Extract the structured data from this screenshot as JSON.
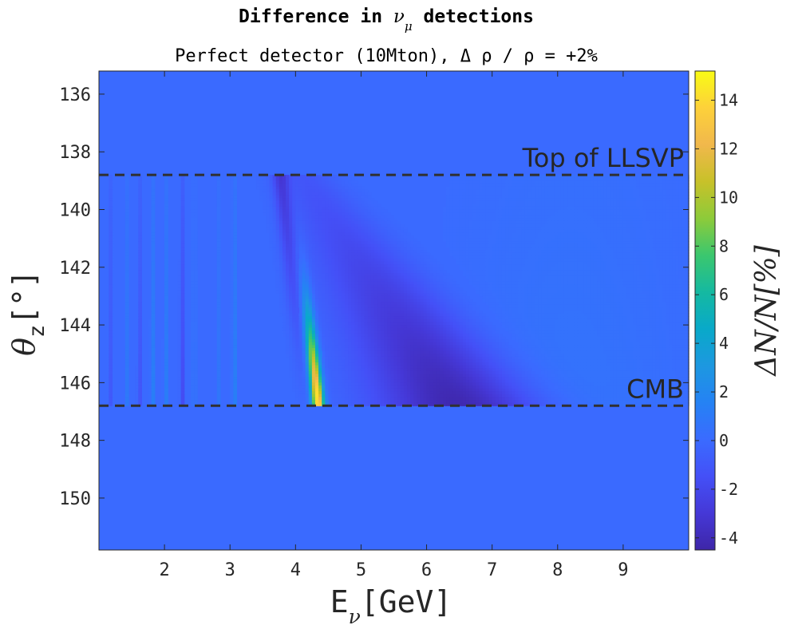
{
  "chart_data": {
    "type": "heatmap",
    "title": "Difference in ν_μ detections",
    "title_parts": {
      "main": "Difference in ",
      "symbol": "ν",
      "sub": "μ",
      "tail": " detections"
    },
    "subtitle": "Perfect detector (10Mton), Δ ρ / ρ = +2%",
    "xlabel": "E_ν[GeV]",
    "xlabel_parts": {
      "main": "E",
      "sub": "ν",
      "tail": "[GeV]"
    },
    "ylabel": "θ_z[°]",
    "ylabel_parts": {
      "main": "θ",
      "sub": "z",
      "tail": "[°]"
    },
    "colorbar_label": "ΔN/N[%]",
    "xlim": [
      1.0,
      10.0
    ],
    "ylim": [
      135.2,
      151.8
    ],
    "y_reversed": true,
    "xticks": [
      2,
      3,
      4,
      5,
      6,
      7,
      8,
      9
    ],
    "xtick_labels": [
      "2",
      "3",
      "4",
      "5",
      "6",
      "7",
      "8",
      "9"
    ],
    "yticks": [
      136,
      138,
      140,
      142,
      144,
      146,
      148,
      150
    ],
    "ytick_labels": [
      "136",
      "138",
      "140",
      "142",
      "144",
      "146",
      "148",
      "150"
    ],
    "clim": [
      -4.5,
      15.2
    ],
    "cticks": [
      -4,
      -2,
      0,
      2,
      4,
      6,
      8,
      10,
      12,
      14
    ],
    "ctick_labels": [
      "-4",
      "-2",
      "0",
      "2",
      "4",
      "6",
      "8",
      "10",
      "12",
      "14"
    ],
    "colormap": "parula",
    "colormap_stops": [
      "#3e26a8",
      "#4538d7",
      "#4450f7",
      "#3a6bff",
      "#2582f4",
      "#1d98e0",
      "#09a9c9",
      "#15b9a1",
      "#3bc76e",
      "#8dcb3a",
      "#c8c129",
      "#f1b84c",
      "#fdd13a",
      "#f9fb15"
    ],
    "background_value": 0.0,
    "anomaly_region": {
      "theta_min": 138.8,
      "theta_max": 146.8,
      "energy_min": 1.0,
      "energy_max": 10.0
    },
    "features": {
      "resonance_ridge": {
        "energy_at_top": 3.95,
        "energy_at_bottom": 4.35,
        "peak_value": 15.0,
        "peak_theta": 146.4
      },
      "depletion_trough": {
        "energy_at_top": 4.1,
        "energy_at_bottom": 6.5,
        "min_value": -4.5,
        "min_theta": 146.5
      },
      "low_energy_streaks": [
        {
          "energy": 1.18,
          "value": -1.0
        },
        {
          "energy": 1.42,
          "value": 1.0
        },
        {
          "energy": 1.62,
          "value": -1.2
        },
        {
          "energy": 1.82,
          "value": 1.4
        },
        {
          "energy": 2.02,
          "value": 1.3
        },
        {
          "energy": 2.27,
          "value": -1.8
        },
        {
          "energy": 2.45,
          "value": 1.0
        },
        {
          "energy": 2.82,
          "value": 0.8
        },
        {
          "energy": 3.06,
          "value": 1.8
        }
      ]
    },
    "annotations": [
      {
        "text": "Top of LLSVP",
        "theta": 138.8,
        "line": "dashed"
      },
      {
        "text": "CMB",
        "theta": 146.8,
        "line": "dashed"
      }
    ],
    "grid": false,
    "legend": "none"
  }
}
